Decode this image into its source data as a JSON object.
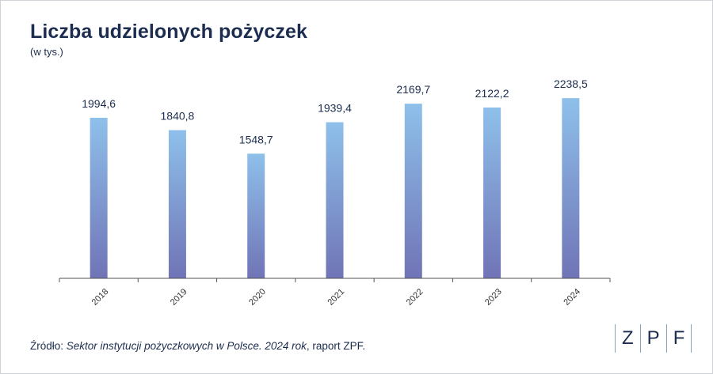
{
  "title": "Liczba udzielonych pożyczek",
  "subtitle": "(w tys.)",
  "source": {
    "prefix": "Źródło: ",
    "italic": "Sektor instytucji pożyczkowych w Polsce. 2024 rok",
    "suffix": ", raport ZPF."
  },
  "logo": {
    "letters": [
      "Z",
      "P",
      "F"
    ]
  },
  "colors": {
    "title": "#1c2d4f",
    "bar_top": "#8ec0ea",
    "bar_bottom": "#7074b6",
    "axis": "#555555"
  },
  "chart_data": {
    "type": "bar",
    "title": "Liczba udzielonych pożyczek",
    "subtitle": "(w tys.)",
    "categories": [
      "2018",
      "2019",
      "2020",
      "2021",
      "2022",
      "2023",
      "2024"
    ],
    "values": [
      1994.6,
      1840.8,
      1548.7,
      1939.4,
      2169.7,
      2122.2,
      2238.5
    ],
    "value_labels": [
      "1994,6",
      "1840,8",
      "1548,7",
      "1939,4",
      "2169,7",
      "2122,2",
      "2238,5"
    ],
    "ylim": [
      0,
      2400
    ],
    "grid": false,
    "legend": "none",
    "xlabel": "",
    "ylabel": ""
  }
}
